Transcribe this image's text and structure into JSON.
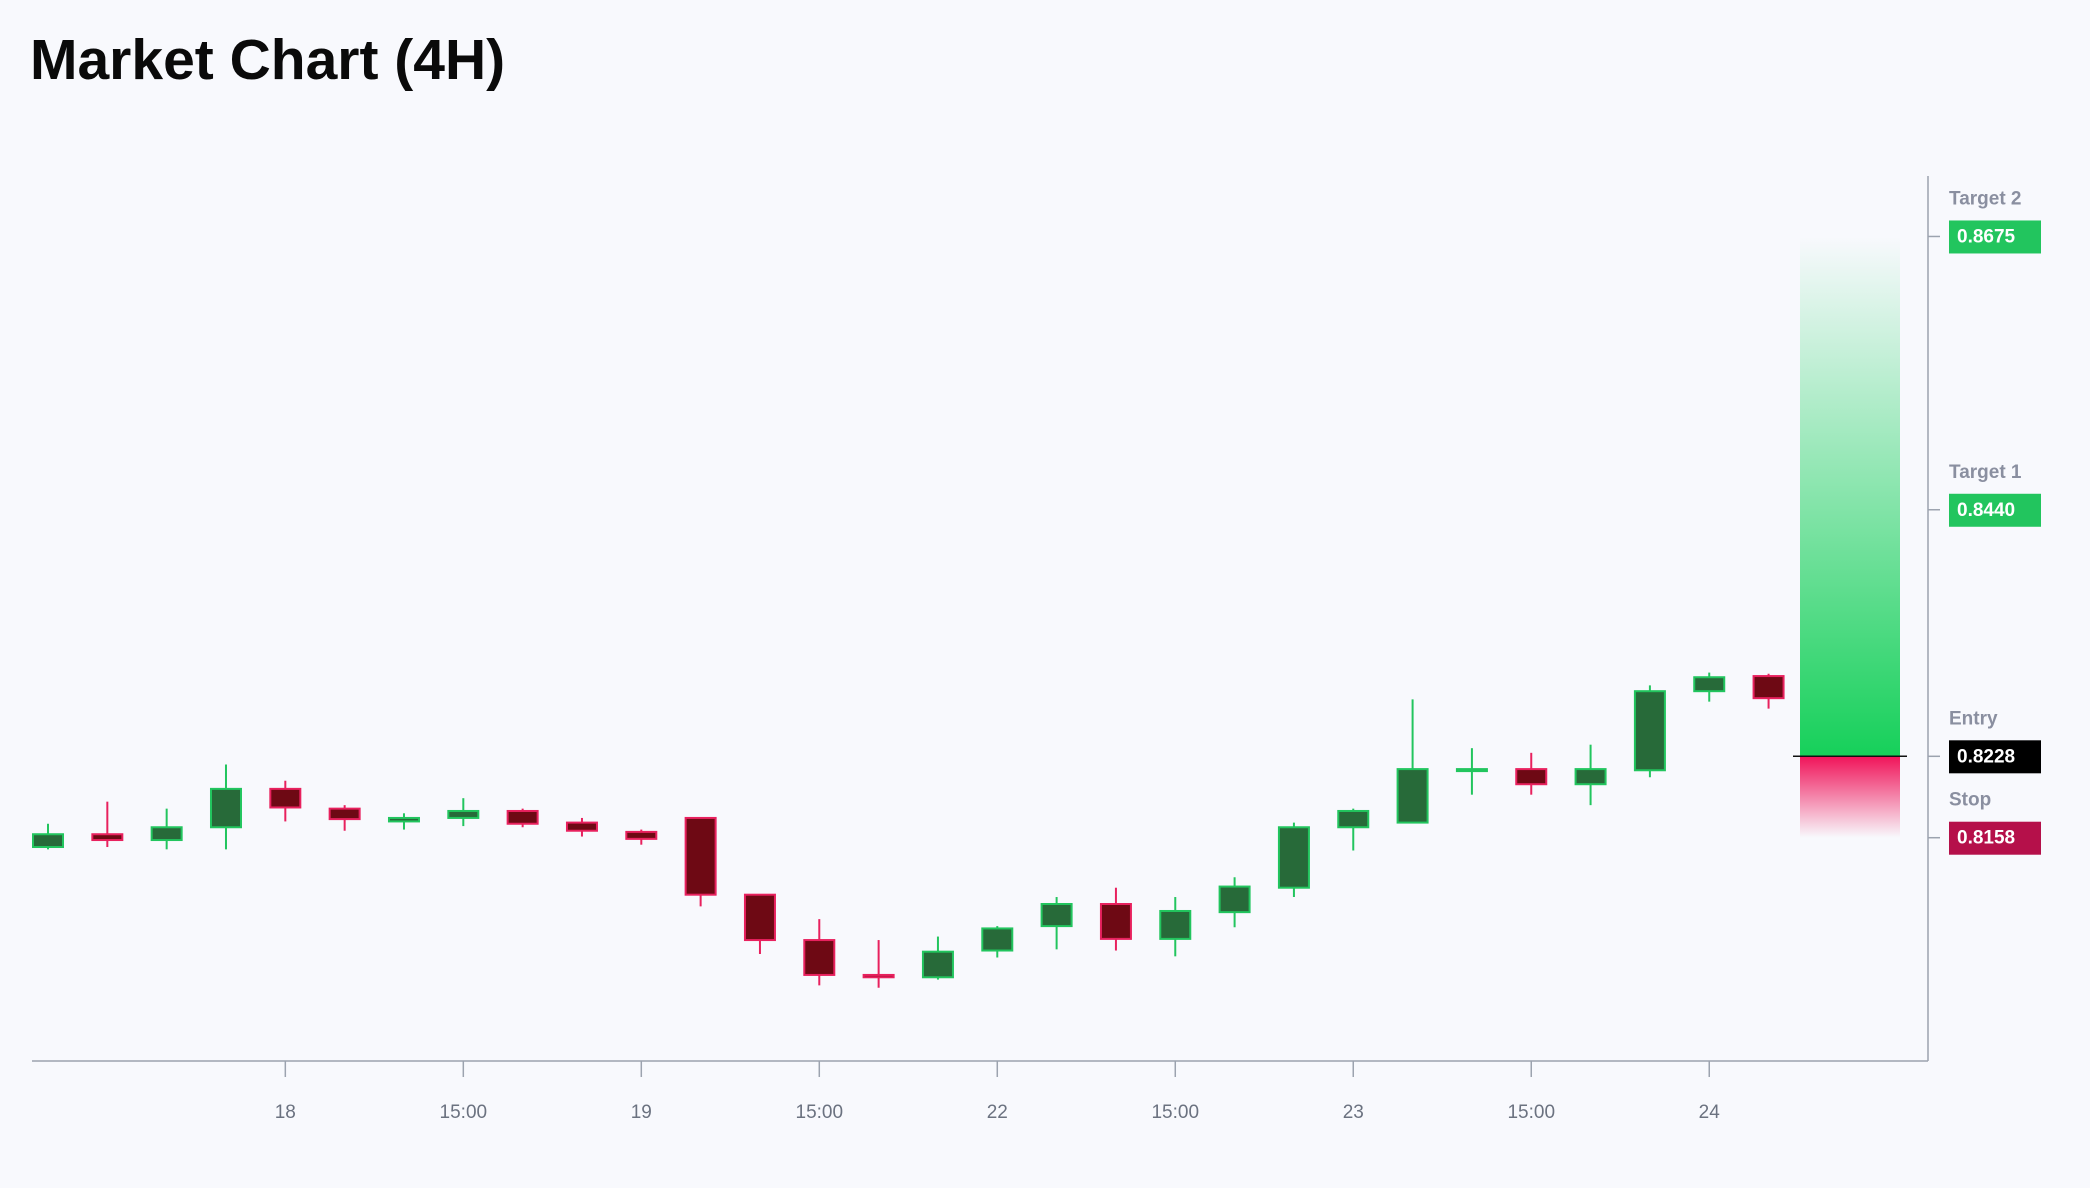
{
  "chart_data": {
    "type": "candlestick",
    "title": "Market Chart (4H)",
    "categories": [
      null,
      null,
      null,
      null,
      "18",
      null,
      null,
      "15:00",
      null,
      null,
      "19",
      null,
      null,
      "15:00",
      null,
      null,
      "22",
      null,
      null,
      "15:00",
      null,
      null,
      "23",
      null,
      null,
      "15:00",
      null,
      null,
      "24",
      null
    ],
    "open": [
      0.815,
      0.8161,
      0.8156,
      0.8167,
      0.82,
      0.8183,
      0.8172,
      0.8175,
      0.8181,
      0.8171,
      0.8163,
      0.8175,
      0.8109,
      0.807,
      0.804,
      0.8038,
      0.8061,
      0.8082,
      0.8101,
      0.8071,
      0.8094,
      0.8115,
      0.8167,
      0.8171,
      0.8216,
      0.8217,
      0.8204,
      0.8216,
      0.8284,
      0.8297
    ],
    "high": [
      0.817,
      0.8189,
      0.8183,
      0.8221,
      0.8207,
      0.8186,
      0.8179,
      0.8192,
      0.8183,
      0.8175,
      0.8165,
      0.8175,
      0.8109,
      0.8088,
      0.807,
      0.8073,
      0.8082,
      0.8107,
      0.8115,
      0.8107,
      0.8124,
      0.8171,
      0.8183,
      0.8277,
      0.8235,
      0.8231,
      0.8238,
      0.8289,
      0.83,
      0.8299
    ],
    "low": [
      0.8148,
      0.815,
      0.8148,
      0.8148,
      0.8172,
      0.8164,
      0.8165,
      0.8168,
      0.8167,
      0.8159,
      0.8152,
      0.8099,
      0.8058,
      0.8031,
      0.8029,
      0.8036,
      0.8055,
      0.8062,
      0.8061,
      0.8056,
      0.8081,
      0.8107,
      0.8147,
      0.8171,
      0.8195,
      0.8195,
      0.8186,
      0.821,
      0.8275,
      0.8269
    ],
    "close": [
      0.8161,
      0.8156,
      0.8167,
      0.82,
      0.8184,
      0.8174,
      0.8175,
      0.8181,
      0.817,
      0.8164,
      0.8157,
      0.8109,
      0.807,
      0.804,
      0.8038,
      0.806,
      0.808,
      0.8101,
      0.8071,
      0.8095,
      0.8116,
      0.8167,
      0.8181,
      0.8217,
      0.8217,
      0.8204,
      0.8217,
      0.8284,
      0.8296,
      0.8278
    ],
    "up_color": "#22c55e",
    "up_fill": "#276a39",
    "down_color": "#e8215e",
    "down_fill": "#6e0914",
    "ylim": [
      0.7966,
      0.8727
    ],
    "levels": [
      {
        "name": "Target 2",
        "value": 0.8675,
        "value_label": "0.8675",
        "color": "#22c55e"
      },
      {
        "name": "Target 1",
        "value": 0.844,
        "value_label": "0.8440",
        "color": "#22c55e"
      },
      {
        "name": "Entry",
        "value": 0.8228,
        "value_label": "0.8228",
        "color": "#000000"
      },
      {
        "name": "Stop",
        "value": 0.8158,
        "value_label": "0.8158",
        "color": "#b5104a"
      }
    ]
  }
}
